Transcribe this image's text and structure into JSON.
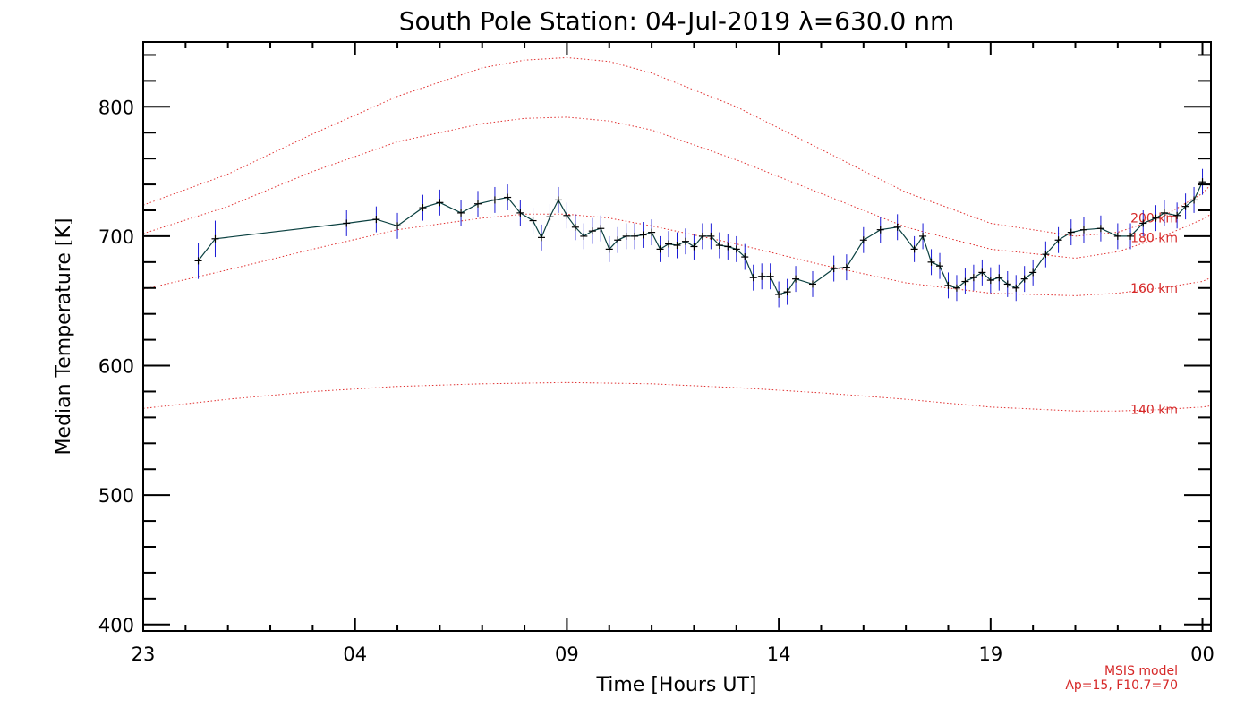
{
  "chart_data": {
    "type": "line",
    "title": "South Pole Station: 04-Jul-2019 λ=630.0 nm",
    "xlabel": "Time [Hours UT]",
    "ylabel": "Median Temperature [K]",
    "xlim": [
      23,
      48.2
    ],
    "ylim": [
      395,
      850
    ],
    "x_ticks": [
      23,
      28,
      33,
      38,
      43,
      48
    ],
    "x_tick_labels": [
      "23",
      "04",
      "09",
      "14",
      "19",
      "00"
    ],
    "y_ticks": [
      400,
      500,
      600,
      700,
      800
    ],
    "y_tick_labels": [
      "400",
      "500",
      "600",
      "700",
      "800"
    ],
    "colors": {
      "data_line": "#0a4040",
      "error_bars": "#1a1ad6",
      "markers": "#000000",
      "model_lines": "#e03030",
      "model_text": "#d62828"
    },
    "model_note": [
      "MSIS model",
      "Ap=15, F10.7=70"
    ],
    "model_series": [
      {
        "name": "200 km",
        "x": [
          23,
          25,
          27,
          29,
          31,
          32,
          33,
          34,
          35,
          37,
          39,
          41,
          43,
          45,
          46,
          47,
          48,
          48.2
        ],
        "y": [
          724,
          748,
          779,
          808,
          830,
          836,
          838,
          835,
          826,
          800,
          767,
          734,
          710,
          700,
          703,
          714,
          733,
          740
        ]
      },
      {
        "name": "180 km",
        "x": [
          23,
          25,
          27,
          29,
          31,
          32,
          33,
          34,
          35,
          37,
          39,
          41,
          43,
          45,
          46,
          47,
          48,
          48.2
        ],
        "y": [
          702,
          723,
          750,
          773,
          787,
          791,
          792,
          789,
          782,
          759,
          733,
          707,
          690,
          683,
          688,
          699,
          713,
          717
        ]
      },
      {
        "name": "160 km",
        "x": [
          23,
          25,
          27,
          29,
          31,
          32,
          33,
          34,
          35,
          37,
          39,
          41,
          43,
          45,
          46,
          47,
          48,
          48.2
        ],
        "y": [
          659,
          674,
          690,
          705,
          714,
          717,
          717,
          714,
          708,
          694,
          678,
          664,
          656,
          654,
          656,
          660,
          665,
          668
        ]
      },
      {
        "name": "140 km",
        "x": [
          23,
          25,
          27,
          29,
          31,
          33,
          35,
          37,
          39,
          41,
          43,
          45,
          46,
          47,
          48,
          48.2
        ],
        "y": [
          567,
          574,
          580,
          584,
          586,
          587,
          586,
          583,
          579,
          574,
          568,
          565,
          565,
          566,
          568,
          569
        ]
      }
    ],
    "series": [
      {
        "name": "",
        "x": [
          24.3,
          24.7,
          27.8,
          28.5,
          29.0,
          29.6,
          30.0,
          30.5,
          30.9,
          31.3,
          31.6,
          31.9,
          32.2,
          32.4,
          32.6,
          32.8,
          33.0,
          33.2,
          33.4,
          33.6,
          33.8,
          34.0,
          34.2,
          34.4,
          34.6,
          34.8,
          35.0,
          35.2,
          35.4,
          35.6,
          35.8,
          36.0,
          36.2,
          36.4,
          36.6,
          36.8,
          37.0,
          37.2,
          37.4,
          37.6,
          37.8,
          38.0,
          38.2,
          38.4,
          38.8,
          39.3,
          39.6,
          40.0,
          40.4,
          40.8,
          41.2,
          41.4,
          41.6,
          41.8,
          42.0,
          42.2,
          42.4,
          42.6,
          42.8,
          43.0,
          43.2,
          43.4,
          43.6,
          43.8,
          44.0,
          44.3,
          44.6,
          44.9,
          45.2,
          45.6,
          46.0,
          46.3,
          46.6,
          46.9,
          47.1,
          47.4,
          47.6,
          47.8,
          48.0
        ],
        "y": [
          681,
          698,
          710,
          713,
          708,
          722,
          726,
          718,
          725,
          728,
          730,
          718,
          712,
          699,
          715,
          728,
          716,
          707,
          700,
          704,
          706,
          690,
          697,
          700,
          700,
          701,
          703,
          690,
          694,
          693,
          696,
          692,
          700,
          700,
          693,
          692,
          690,
          684,
          668,
          669,
          669,
          655,
          657,
          667,
          663,
          675,
          676,
          697,
          705,
          707,
          690,
          700,
          680,
          677,
          662,
          660,
          665,
          668,
          672,
          666,
          668,
          663,
          660,
          667,
          672,
          686,
          697,
          703,
          705,
          706,
          700,
          700,
          710,
          714,
          718,
          716,
          723,
          728,
          742
        ],
        "err": [
          14,
          14,
          10,
          10,
          10,
          10,
          10,
          10,
          10,
          10,
          10,
          10,
          10,
          10,
          10,
          10,
          10,
          10,
          10,
          10,
          10,
          10,
          10,
          10,
          10,
          10,
          10,
          10,
          10,
          10,
          10,
          10,
          10,
          10,
          10,
          10,
          10,
          10,
          10,
          10,
          10,
          10,
          10,
          10,
          10,
          10,
          10,
          10,
          10,
          10,
          10,
          10,
          10,
          10,
          10,
          10,
          10,
          10,
          10,
          10,
          10,
          10,
          10,
          10,
          10,
          10,
          10,
          10,
          10,
          10,
          10,
          10,
          10,
          10,
          10,
          10,
          10,
          10,
          10
        ]
      }
    ]
  }
}
